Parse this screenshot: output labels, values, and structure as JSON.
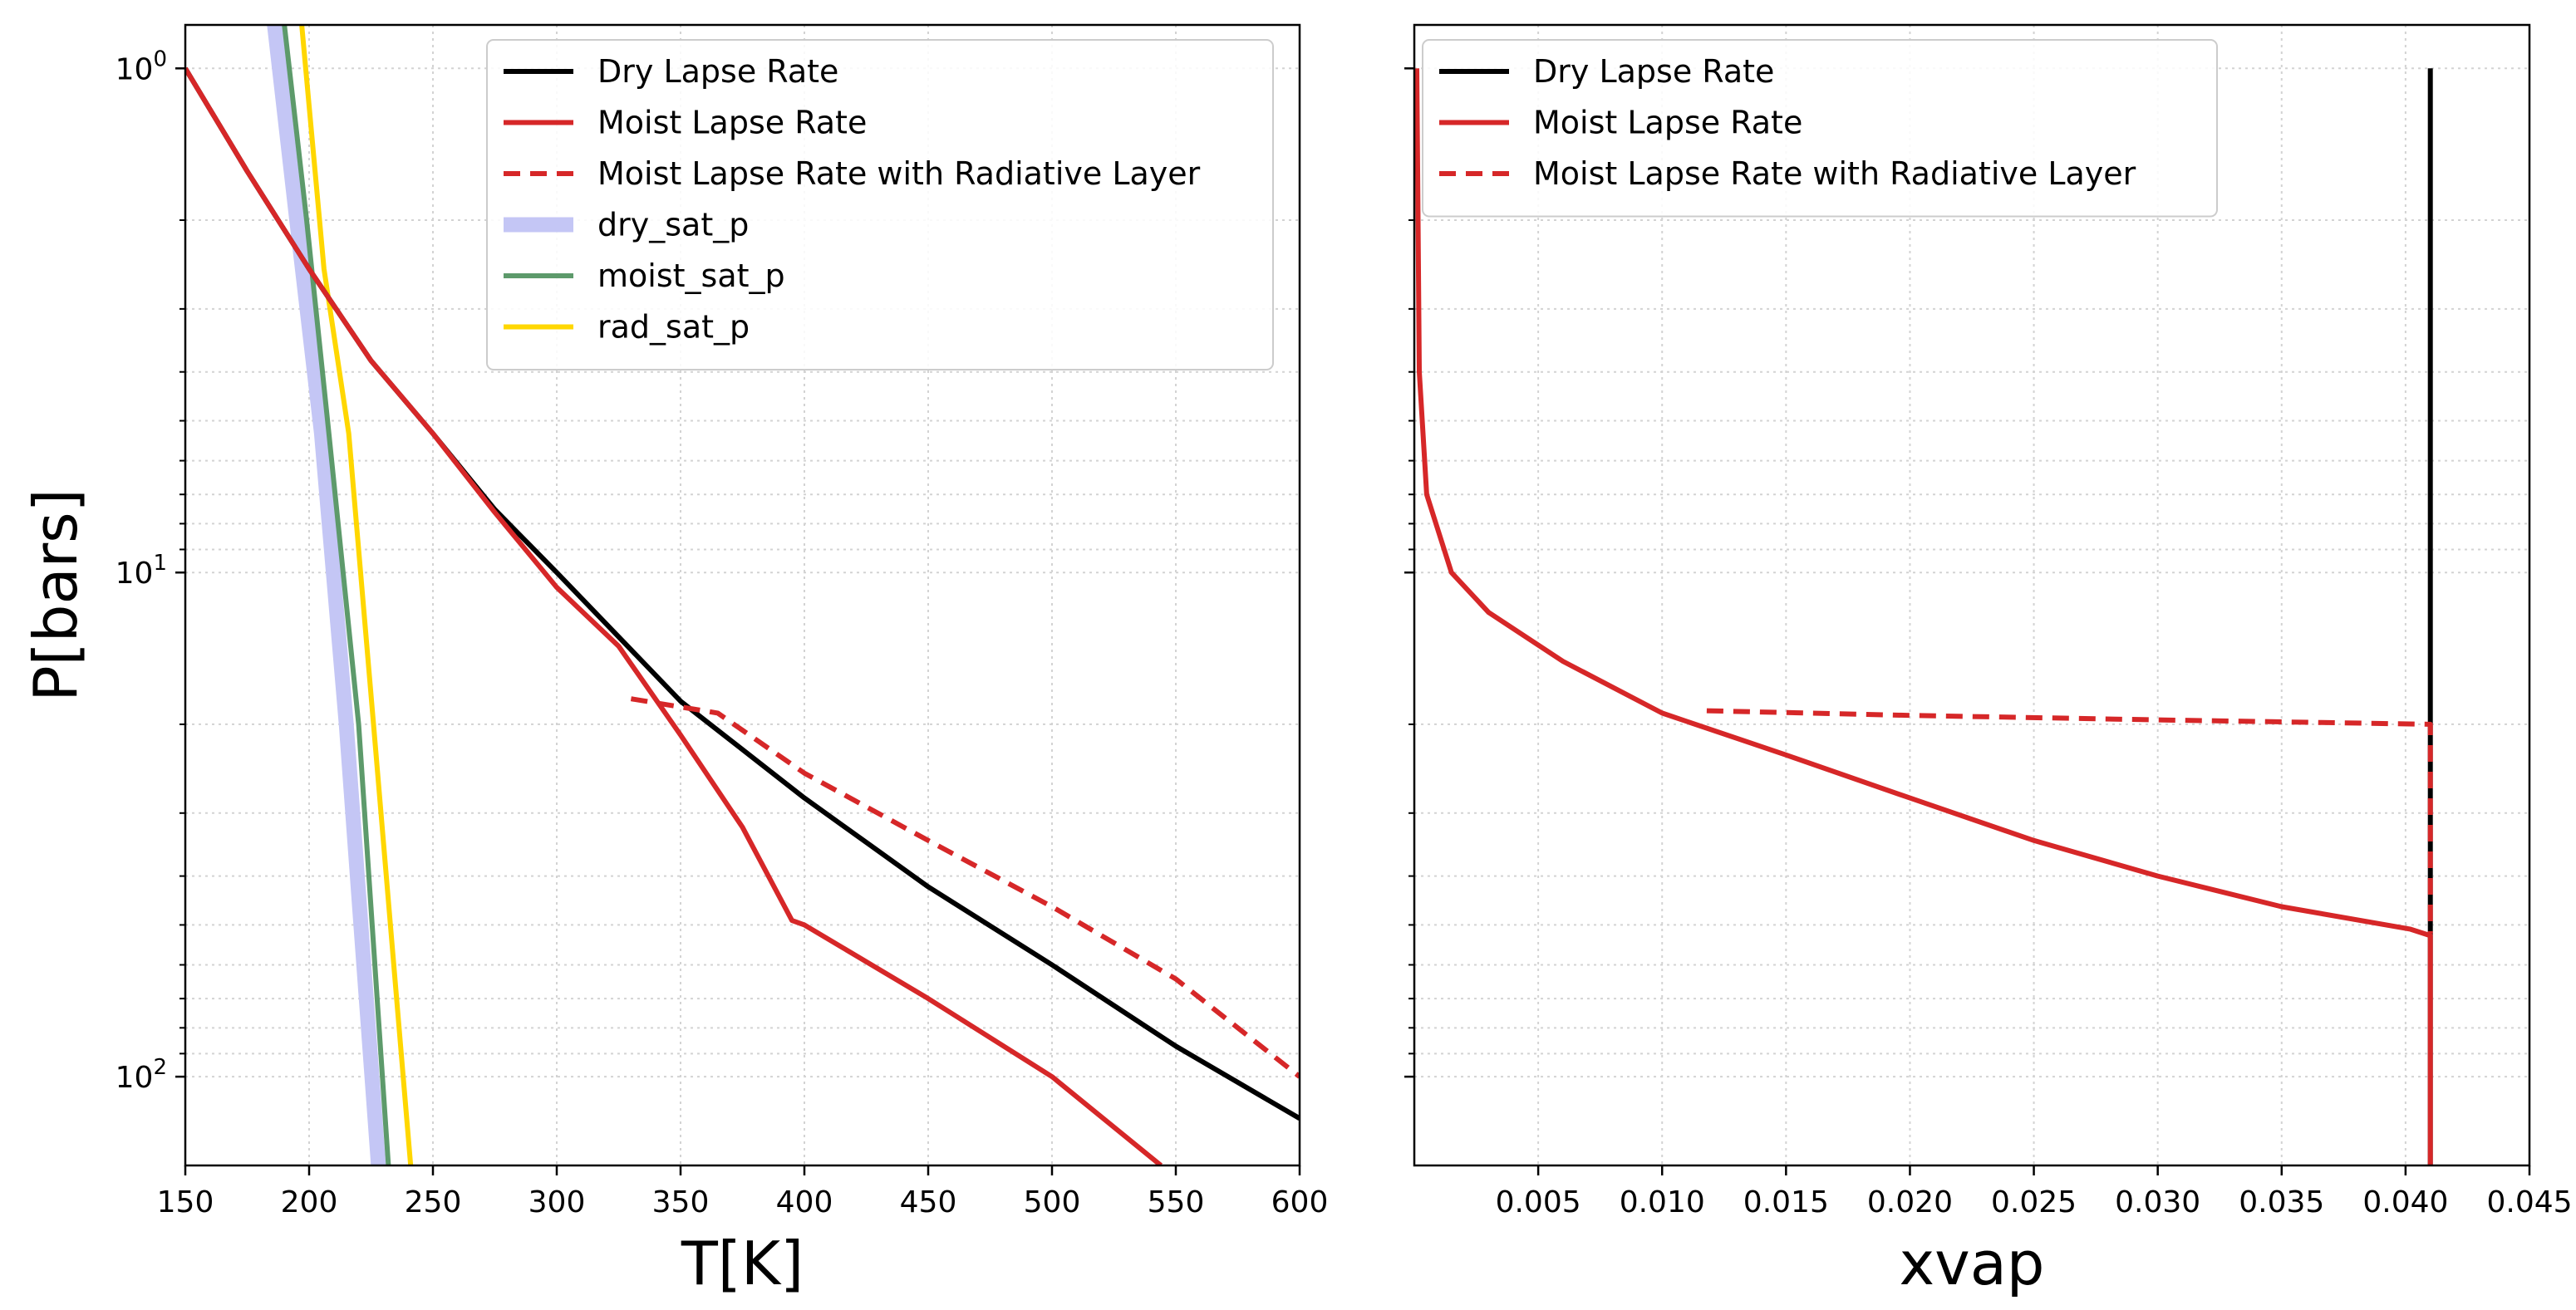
{
  "chart_data": [
    {
      "type": "line",
      "xlabel": "T[K]",
      "ylabel": "P[bars]",
      "xlim": [
        150,
        600
      ],
      "ylim": [
        150,
        0.82
      ],
      "yscale": "log",
      "y_inverted": true,
      "grid": true,
      "legend_position": "top-right",
      "xticks": [
        "150",
        "200",
        "250",
        "300",
        "350",
        "400",
        "450",
        "500",
        "550",
        "600"
      ],
      "yticks": [
        {
          "value": 1,
          "base": "10",
          "exp": "0"
        },
        {
          "value": 10,
          "base": "10",
          "exp": "1"
        },
        {
          "value": 100,
          "base": "10",
          "exp": "2"
        }
      ],
      "series": [
        {
          "name": "Dry Lapse Rate",
          "color": "#000000",
          "style": "solid",
          "points": [
            [
              150,
              1
            ],
            [
              175,
              1.6
            ],
            [
              200,
              2.5
            ],
            [
              225,
              3.8
            ],
            [
              250,
              5.3
            ],
            [
              275,
              7.5
            ],
            [
              300,
              10
            ],
            [
              350,
              18
            ],
            [
              400,
              28
            ],
            [
              450,
              42
            ],
            [
              500,
              60
            ],
            [
              550,
              87
            ],
            [
              600,
              121
            ]
          ]
        },
        {
          "name": "Moist Lapse Rate",
          "color": "#d62728",
          "style": "solid",
          "points": [
            [
              150,
              1
            ],
            [
              175,
              1.6
            ],
            [
              200,
              2.5
            ],
            [
              225,
              3.8
            ],
            [
              250,
              5.3
            ],
            [
              275,
              7.6
            ],
            [
              300,
              10.7
            ],
            [
              325,
              14
            ],
            [
              350,
              21
            ],
            [
              375,
              32
            ],
            [
              395,
              49
            ],
            [
              400,
              50
            ],
            [
              450,
              70
            ],
            [
              500,
              100
            ],
            [
              544,
              150
            ]
          ]
        },
        {
          "name": "Moist Lapse Rate with Radiative Layer",
          "color": "#d62728",
          "style": "dashed",
          "points": [
            [
              330,
              17.8
            ],
            [
              365,
              19
            ],
            [
              400,
              25
            ],
            [
              450,
              34
            ],
            [
              500,
              46
            ],
            [
              550,
              64
            ],
            [
              600,
              100
            ]
          ]
        },
        {
          "name": "dry_sat_p",
          "color": "#c4c6f5",
          "style": "thick",
          "points": [
            [
              186,
              0.82
            ],
            [
              195,
              2
            ],
            [
              205,
              5.3
            ],
            [
              215,
              20
            ],
            [
              228,
              150
            ]
          ]
        },
        {
          "name": "moist_sat_p",
          "color": "#5d9a6b",
          "style": "solid",
          "points": [
            [
              190,
              0.82
            ],
            [
              199,
              2
            ],
            [
              208,
              5.3
            ],
            [
              220,
              20
            ],
            [
              232,
              150
            ]
          ]
        },
        {
          "name": "rad_sat_p",
          "color": "#ffd700",
          "style": "solid",
          "points": [
            [
              197,
              0.82
            ],
            [
              206,
              2.5
            ],
            [
              216,
              5.3
            ],
            [
              226,
              20
            ],
            [
              241,
              150
            ]
          ]
        }
      ]
    },
    {
      "type": "line",
      "xlabel": "xvap",
      "ylabel": "",
      "xlim": [
        0.0,
        0.045
      ],
      "ylim": [
        150,
        0.82
      ],
      "yscale": "log",
      "y_inverted": true,
      "grid": true,
      "legend_position": "top-left",
      "xticks": [
        "0.005",
        "0.010",
        "0.015",
        "0.020",
        "0.025",
        "0.030",
        "0.035",
        "0.040",
        "0.045"
      ],
      "series": [
        {
          "name": "Dry Lapse Rate",
          "color": "#000000",
          "style": "solid",
          "points": [
            [
              0.041,
              1
            ],
            [
              0.041,
              150
            ]
          ]
        },
        {
          "name": "Moist Lapse Rate",
          "color": "#d62728",
          "style": "solid",
          "points": [
            [
              0.0001,
              1
            ],
            [
              0.0002,
              4
            ],
            [
              0.0005,
              7
            ],
            [
              0.0015,
              10
            ],
            [
              0.003,
              12
            ],
            [
              0.006,
              15
            ],
            [
              0.01,
              19
            ],
            [
              0.015,
              23
            ],
            [
              0.02,
              28
            ],
            [
              0.025,
              34
            ],
            [
              0.03,
              40
            ],
            [
              0.035,
              46
            ],
            [
              0.0402,
              51
            ],
            [
              0.041,
              52.5
            ],
            [
              0.041,
              150
            ]
          ]
        },
        {
          "name": "Moist Lapse Rate with Radiative Layer",
          "color": "#d62728",
          "style": "dashed",
          "points": [
            [
              0.0118,
              18.8
            ],
            [
              0.02,
              19.2
            ],
            [
              0.03,
              19.6
            ],
            [
              0.041,
              20
            ],
            [
              0.041,
              52
            ]
          ]
        }
      ]
    }
  ]
}
